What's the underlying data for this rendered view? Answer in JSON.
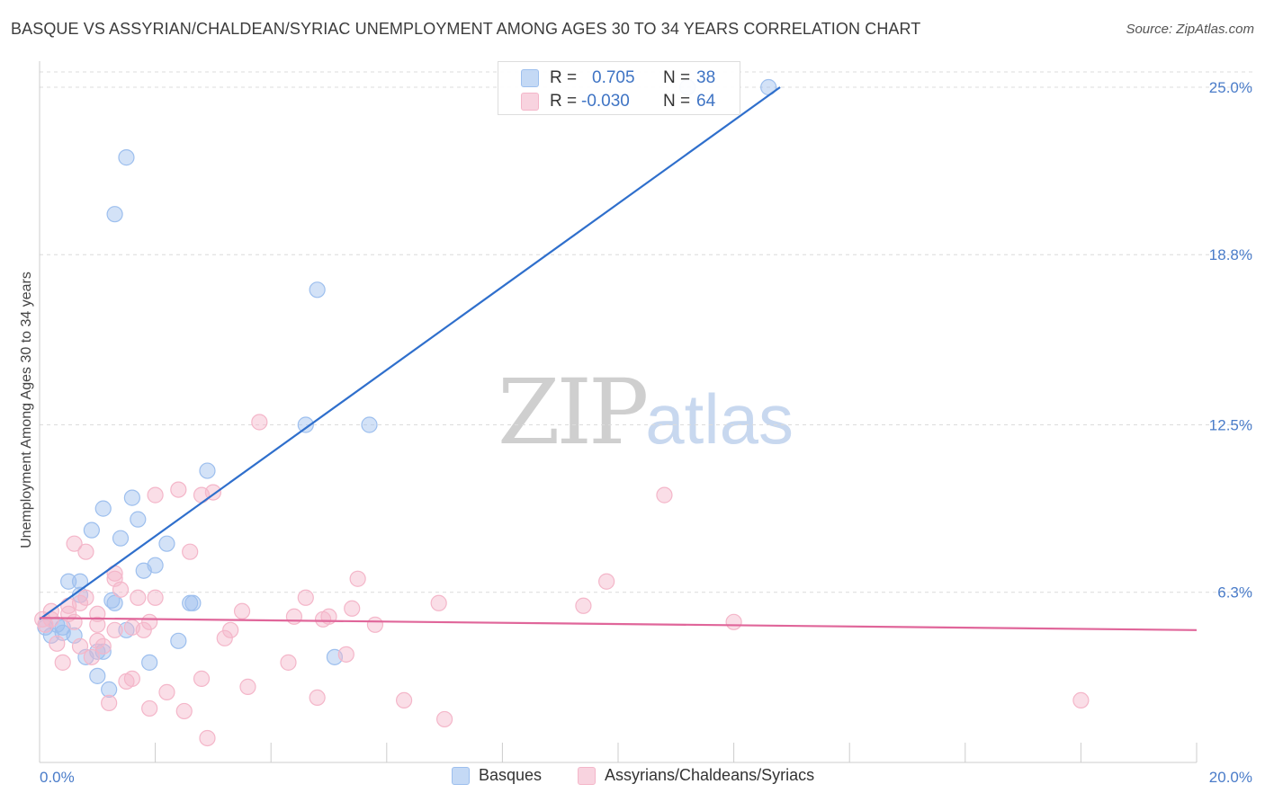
{
  "title": "BASQUE VS ASSYRIAN/CHALDEAN/SYRIAC UNEMPLOYMENT AMONG AGES 30 TO 34 YEARS CORRELATION CHART",
  "source": "Source: ZipAtlas.com",
  "watermark": {
    "zip": "ZIP",
    "atlas": "atlas"
  },
  "stats": [
    {
      "r_label": "R =",
      "r_value": "0.705",
      "n_label": "N =",
      "n_value": "38",
      "color": "#9dbfee"
    },
    {
      "r_label": "R =",
      "r_value": "-0.030",
      "n_label": "N =",
      "n_value": "64",
      "color": "#f4b6c9"
    }
  ],
  "legend": [
    {
      "label": "Basques",
      "color": "#9dbfee"
    },
    {
      "label": "Assyrians/Chaldeans/Syriacs",
      "color": "#f4b6c9"
    }
  ],
  "chart_data": {
    "type": "scatter",
    "title": "BASQUE VS ASSYRIAN/CHALDEAN/SYRIAC UNEMPLOYMENT AMONG AGES 30 TO 34 YEARS CORRELATION CHART",
    "xlabel": "",
    "ylabel": "Unemployment Among Ages 30 to 34 years",
    "xlim": [
      0,
      20
    ],
    "ylim": [
      0,
      25
    ],
    "x_tick_labels": [
      "0.0%",
      "20.0%"
    ],
    "y_ticks": [
      6.3,
      12.5,
      18.8,
      25.0
    ],
    "y_tick_labels": [
      "6.3%",
      "12.5%",
      "18.8%",
      "25.0%"
    ],
    "grid": true,
    "legend_position": "bottom",
    "series": [
      {
        "name": "Basques",
        "color": "#9dbfee",
        "line_color": "#2f6fcc",
        "trend": [
          [
            0.0,
            5.3
          ],
          [
            12.8,
            25.0
          ]
        ],
        "points": [
          [
            0.1,
            5.0
          ],
          [
            0.2,
            4.7
          ],
          [
            0.3,
            5.1
          ],
          [
            0.4,
            5.0
          ],
          [
            0.4,
            4.8
          ],
          [
            0.5,
            6.7
          ],
          [
            0.6,
            4.7
          ],
          [
            0.7,
            6.2
          ],
          [
            0.7,
            6.7
          ],
          [
            0.8,
            3.9
          ],
          [
            0.9,
            8.6
          ],
          [
            1.0,
            3.2
          ],
          [
            1.0,
            4.1
          ],
          [
            1.1,
            4.1
          ],
          [
            1.1,
            9.4
          ],
          [
            1.2,
            2.7
          ],
          [
            1.25,
            6.0
          ],
          [
            1.3,
            20.3
          ],
          [
            1.3,
            5.9
          ],
          [
            1.4,
            8.3
          ],
          [
            1.5,
            4.9
          ],
          [
            1.5,
            22.4
          ],
          [
            1.6,
            9.8
          ],
          [
            1.7,
            9.0
          ],
          [
            1.8,
            7.1
          ],
          [
            1.9,
            3.7
          ],
          [
            2.0,
            7.3
          ],
          [
            2.2,
            8.1
          ],
          [
            2.4,
            4.5
          ],
          [
            2.6,
            5.9
          ],
          [
            2.65,
            5.9
          ],
          [
            2.9,
            10.8
          ],
          [
            4.6,
            12.5
          ],
          [
            4.8,
            17.5
          ],
          [
            5.1,
            3.9
          ],
          [
            5.7,
            12.5
          ],
          [
            11.2,
            25.0
          ],
          [
            12.6,
            25.0
          ]
        ]
      },
      {
        "name": "Assyrians/Chaldeans/Syriacs",
        "color": "#f4b6c9",
        "line_color": "#e0669a",
        "trend": [
          [
            0.0,
            5.35
          ],
          [
            20.0,
            4.9
          ]
        ],
        "points": [
          [
            0.05,
            5.3
          ],
          [
            0.1,
            5.1
          ],
          [
            0.2,
            5.3
          ],
          [
            0.3,
            4.4
          ],
          [
            0.4,
            3.7
          ],
          [
            0.5,
            5.8
          ],
          [
            0.5,
            5.5
          ],
          [
            0.6,
            8.1
          ],
          [
            0.7,
            4.3
          ],
          [
            0.7,
            5.9
          ],
          [
            0.8,
            6.1
          ],
          [
            0.8,
            7.8
          ],
          [
            0.9,
            3.9
          ],
          [
            1.0,
            4.5
          ],
          [
            1.0,
            5.5
          ],
          [
            1.1,
            4.3
          ],
          [
            1.2,
            2.2
          ],
          [
            1.3,
            4.9
          ],
          [
            1.3,
            6.8
          ],
          [
            1.3,
            7.0
          ],
          [
            1.4,
            6.4
          ],
          [
            1.5,
            3.0
          ],
          [
            1.6,
            3.1
          ],
          [
            1.6,
            5.0
          ],
          [
            1.7,
            6.1
          ],
          [
            1.8,
            4.9
          ],
          [
            1.9,
            2.0
          ],
          [
            1.9,
            5.2
          ],
          [
            2.0,
            9.9
          ],
          [
            2.0,
            6.1
          ],
          [
            2.2,
            2.6
          ],
          [
            2.4,
            10.1
          ],
          [
            2.5,
            1.9
          ],
          [
            2.6,
            7.8
          ],
          [
            2.8,
            3.1
          ],
          [
            2.8,
            9.9
          ],
          [
            2.9,
            0.9
          ],
          [
            3.0,
            10.0
          ],
          [
            3.2,
            4.6
          ],
          [
            3.3,
            4.9
          ],
          [
            3.5,
            5.6
          ],
          [
            3.6,
            2.8
          ],
          [
            3.8,
            12.6
          ],
          [
            4.3,
            3.7
          ],
          [
            4.4,
            5.4
          ],
          [
            4.6,
            6.1
          ],
          [
            4.8,
            2.4
          ],
          [
            4.9,
            5.3
          ],
          [
            5.0,
            5.4
          ],
          [
            5.3,
            4.0
          ],
          [
            5.4,
            5.7
          ],
          [
            5.5,
            6.8
          ],
          [
            5.8,
            5.1
          ],
          [
            6.3,
            2.3
          ],
          [
            6.9,
            5.9
          ],
          [
            7.0,
            1.6
          ],
          [
            9.4,
            5.8
          ],
          [
            9.8,
            6.7
          ],
          [
            10.8,
            9.9
          ],
          [
            12.0,
            5.2
          ],
          [
            18.0,
            2.3
          ],
          [
            0.2,
            5.6
          ],
          [
            1.0,
            5.1
          ],
          [
            0.6,
            5.2
          ]
        ]
      }
    ]
  }
}
